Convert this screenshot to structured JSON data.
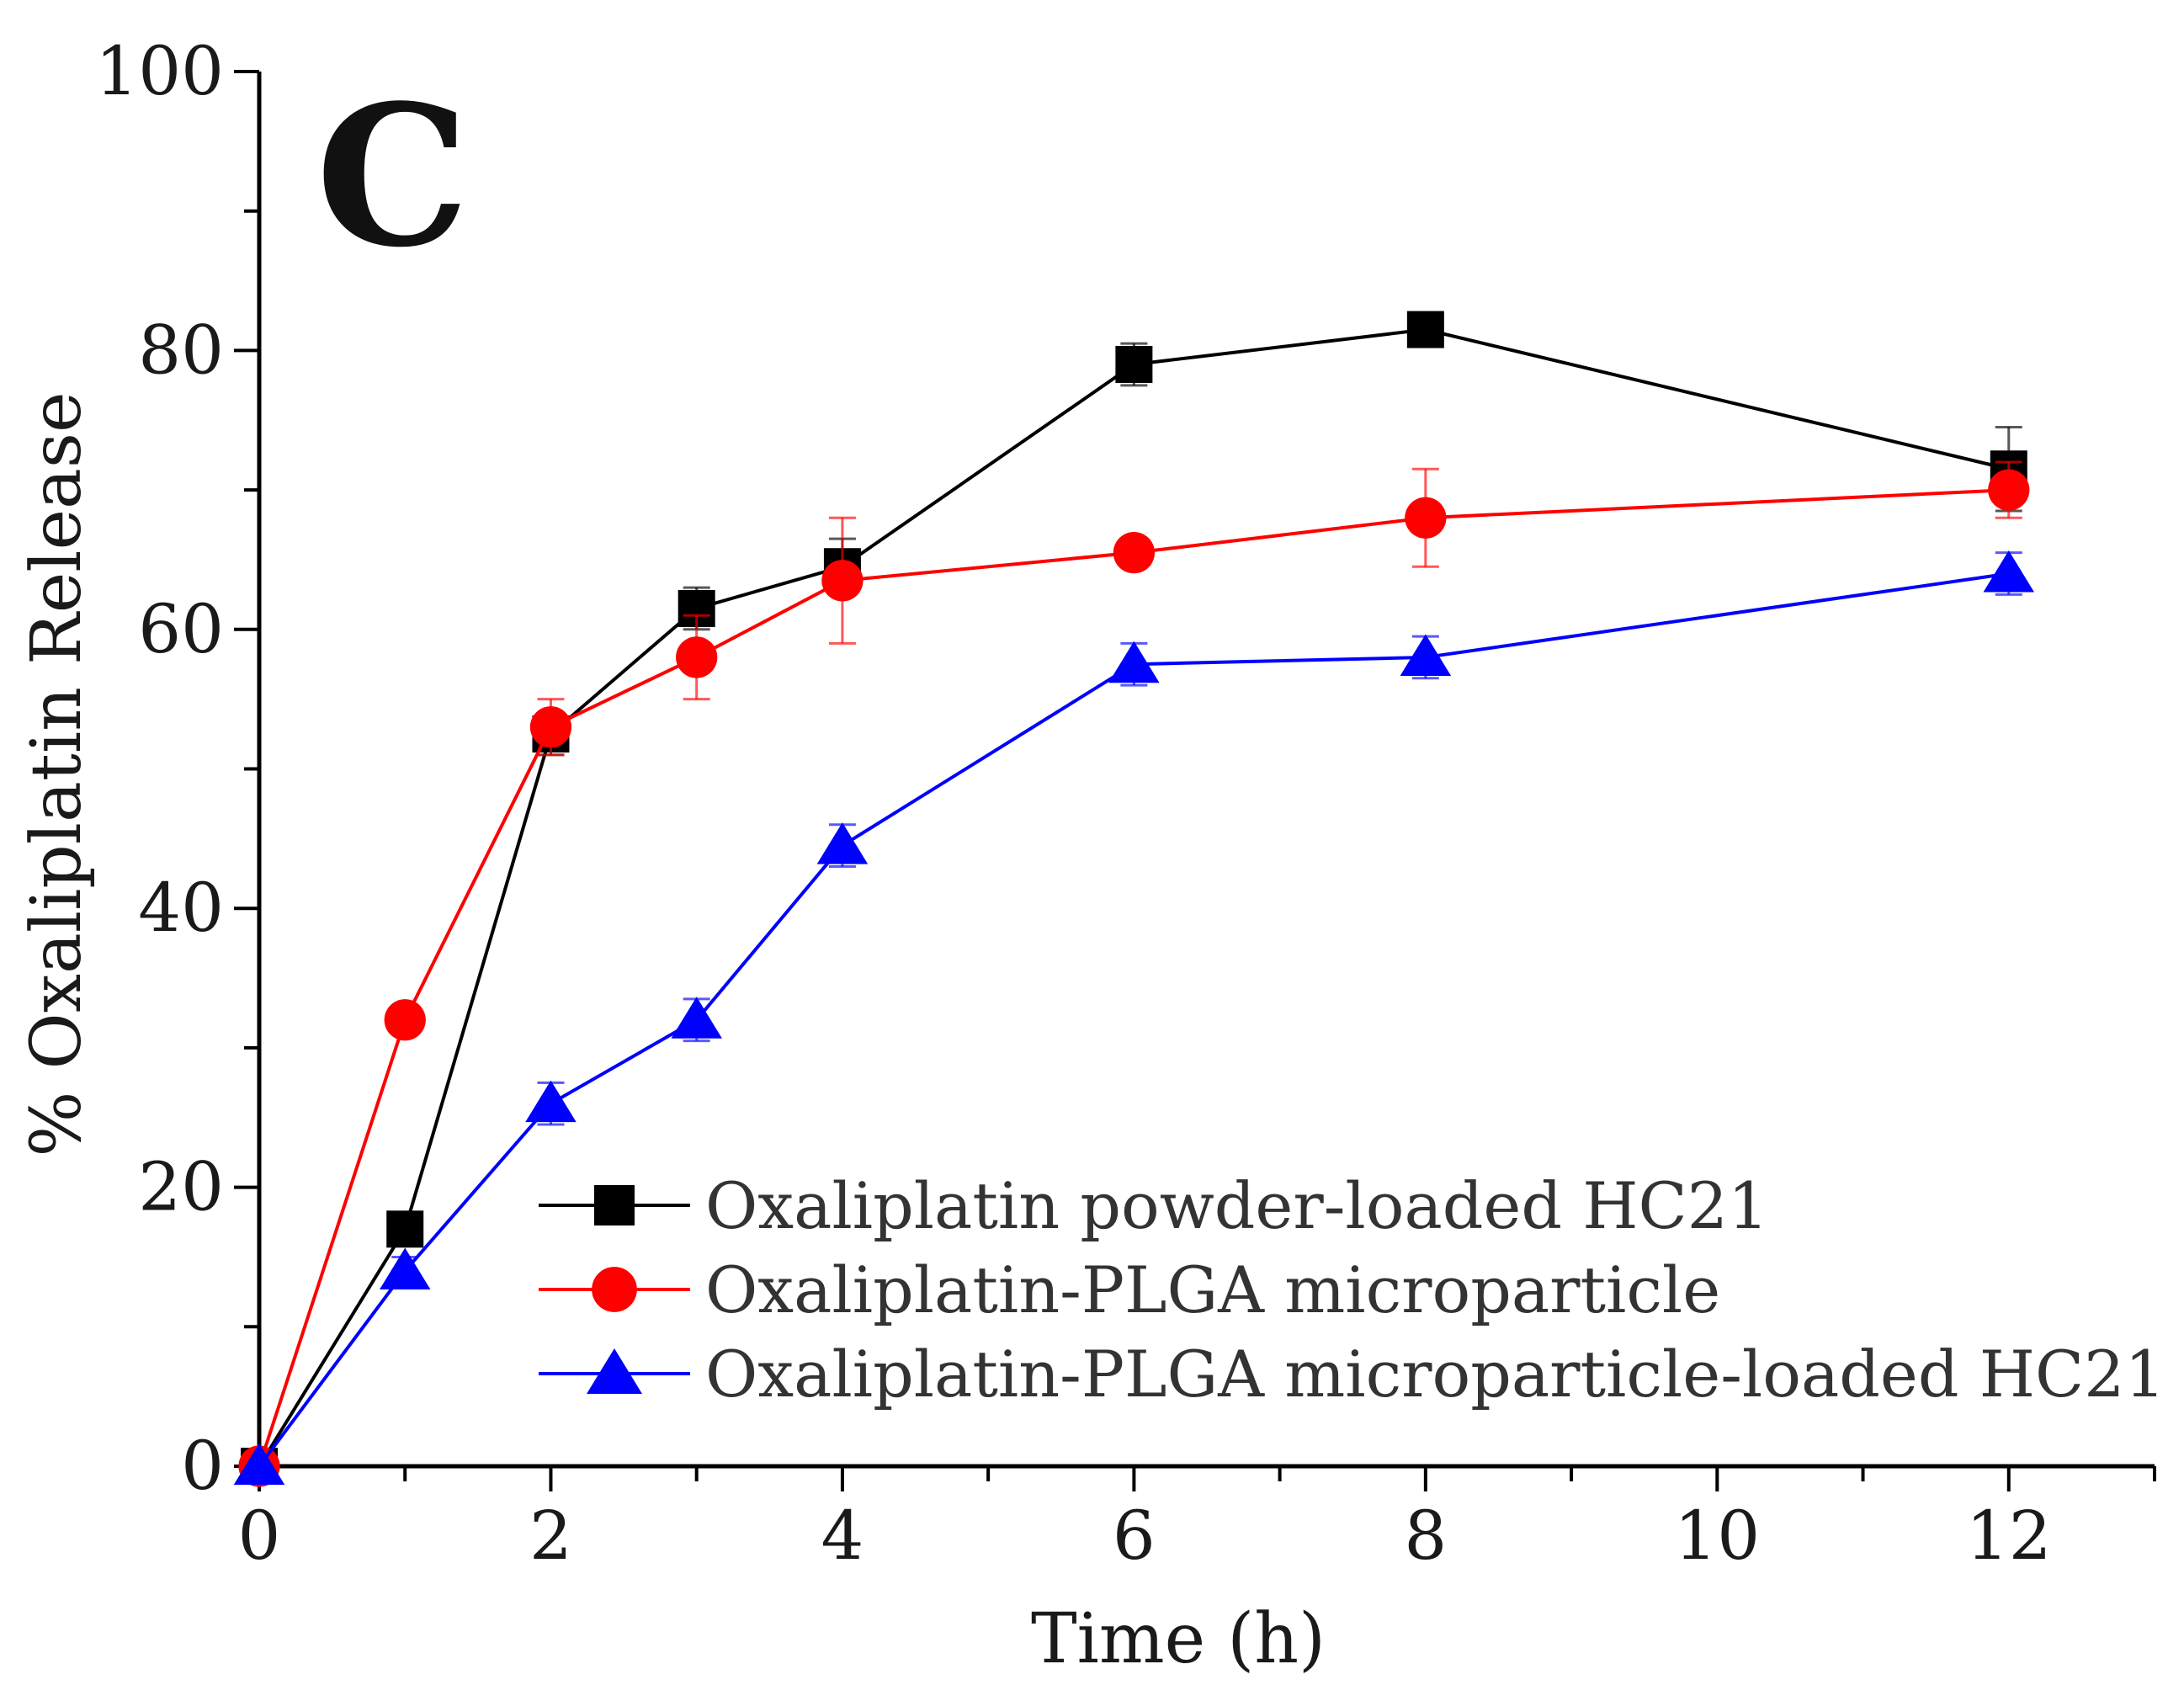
{
  "chart_data": {
    "type": "line",
    "panel_label": "C",
    "xlabel": "Time (h)",
    "ylabel": "% Oxaliplatin Release",
    "xlim": [
      0,
      13
    ],
    "ylim": [
      0,
      100
    ],
    "x_ticks": [
      0,
      2,
      4,
      6,
      8,
      10,
      12
    ],
    "y_ticks": [
      0,
      20,
      40,
      60,
      80,
      100
    ],
    "x_minor_step": 1,
    "y_minor_step": 10,
    "grid": false,
    "legend_position": "bottom-right",
    "series": [
      {
        "name": "Oxaliplatin powder-loaded HC21",
        "color": "#000000",
        "marker": "square",
        "x": [
          0,
          1,
          2,
          3,
          4,
          6,
          8,
          12
        ],
        "y": [
          0,
          17,
          52.5,
          61.5,
          64.5,
          79,
          81.5,
          71.5
        ],
        "error": [
          0,
          1,
          1.5,
          1.5,
          2,
          1.5,
          1,
          3
        ]
      },
      {
        "name": "Oxaliplatin-PLGA microparticle",
        "color": "#ff0000",
        "marker": "circle",
        "x": [
          0,
          1,
          2,
          3,
          4,
          6,
          8,
          12
        ],
        "y": [
          0,
          32,
          53,
          58,
          63.5,
          65.5,
          68,
          70
        ],
        "error": [
          0,
          1,
          2,
          3,
          4.5,
          1,
          3.5,
          2
        ]
      },
      {
        "name": "Oxaliplatin-PLGA microparticle-loaded HC21",
        "color": "#0000ff",
        "marker": "triangle",
        "x": [
          0,
          1,
          2,
          3,
          4,
          6,
          8,
          12
        ],
        "y": [
          0,
          14,
          26,
          32,
          44.5,
          57.5,
          58,
          64
        ],
        "error": [
          0,
          1,
          1.5,
          1.5,
          1.5,
          1.5,
          1.5,
          1.5
        ]
      }
    ]
  }
}
